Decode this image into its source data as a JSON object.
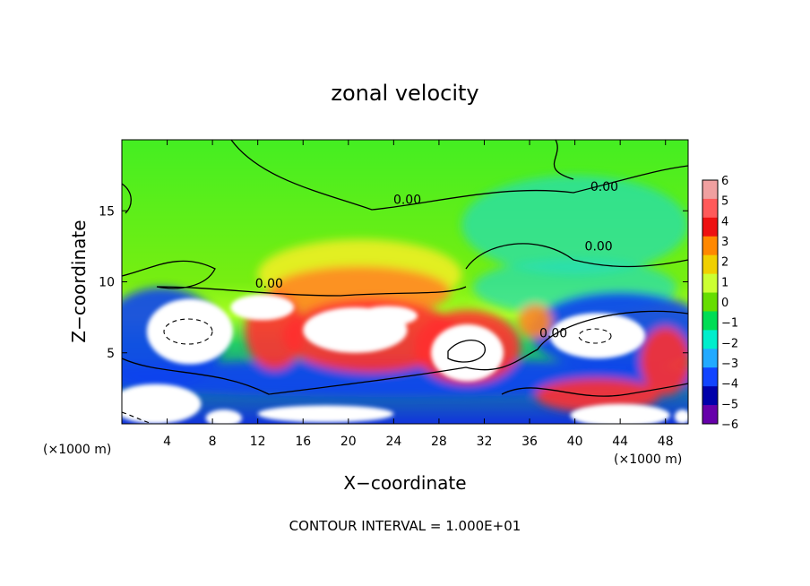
{
  "chart_data": {
    "type": "heatmap",
    "title": "zonal velocity",
    "xlabel": "X−coordinate",
    "ylabel": "Z−coordinate",
    "x_units": "(×1000 m)",
    "y_units": "(×1000 m)",
    "xlim": [
      0,
      50
    ],
    "ylim": [
      0,
      20
    ],
    "x_ticks": [
      4,
      8,
      12,
      16,
      20,
      24,
      28,
      32,
      36,
      40,
      44,
      48
    ],
    "y_ticks": [
      5,
      10,
      15
    ],
    "colorbar": {
      "ticks": [
        "6",
        "5",
        "4",
        "3",
        "2",
        "1",
        "0",
        "−1",
        "−2",
        "−3",
        "−4",
        "−5",
        "−6"
      ],
      "range": [
        -6,
        6
      ],
      "colors": [
        "#f0a0a0",
        "#ff5a5a",
        "#ee1111",
        "#ff8800",
        "#f0d000",
        "#ccff33",
        "#66dd00",
        "#00dd55",
        "#00eecc",
        "#22aaff",
        "#1144ff",
        "#0000aa",
        "#6600aa"
      ]
    },
    "contour_labels": [
      {
        "text": "0.00",
        "x": 13,
        "y": 9.6
      },
      {
        "text": "0.00",
        "x": 25.2,
        "y": 15.5
      },
      {
        "text": "0.00",
        "x": 42.6,
        "y": 16.4
      },
      {
        "text": "0.00",
        "x": 42.1,
        "y": 12.2
      },
      {
        "text": "0.00",
        "x": 38.1,
        "y": 6.1
      }
    ],
    "features": [
      {
        "kind": "white",
        "x": 6,
        "y": 6.5,
        "rx": 3.8,
        "ry": 2.3
      },
      {
        "kind": "white",
        "x": 12.4,
        "y": 8.2,
        "rx": 2.8,
        "ry": 0.9
      },
      {
        "kind": "white",
        "x": 20.6,
        "y": 6.6,
        "rx": 4.6,
        "ry": 1.6
      },
      {
        "kind": "white",
        "x": 23.5,
        "y": 7.6,
        "rx": 2.6,
        "ry": 0.7
      },
      {
        "kind": "white",
        "x": 30.5,
        "y": 5,
        "rx": 3.2,
        "ry": 2
      },
      {
        "kind": "white",
        "x": 42,
        "y": 6.2,
        "rx": 4.2,
        "ry": 1.6
      },
      {
        "kind": "white",
        "x": 3,
        "y": 1.4,
        "rx": 4,
        "ry": 1.4
      },
      {
        "kind": "white",
        "x": 9,
        "y": 0.4,
        "rx": 1.6,
        "ry": 0.6
      },
      {
        "kind": "white",
        "x": 18,
        "y": 0.7,
        "rx": 6,
        "ry": 0.6
      },
      {
        "kind": "white",
        "x": 44,
        "y": 0.6,
        "rx": 4.4,
        "ry": 0.8
      },
      {
        "kind": "white",
        "x": 49.5,
        "y": 0.5,
        "rx": 0.7,
        "ry": 0.5
      },
      {
        "kind": "blue",
        "x": 3.5,
        "y": 6,
        "rx": 5.5,
        "ry": 3.6
      },
      {
        "kind": "blue",
        "x": 44,
        "y": 6.5,
        "rx": 8,
        "ry": 2.8
      },
      {
        "kind": "blue",
        "x": 18.7,
        "y": 7,
        "rx": 1.8,
        "ry": 1.6
      },
      {
        "kind": "blue",
        "x": 24,
        "y": 3.2,
        "rx": 30,
        "ry": 1.3
      },
      {
        "kind": "red",
        "x": 13.5,
        "y": 6.5,
        "rx": 2.6,
        "ry": 2.7
      },
      {
        "kind": "red",
        "x": 22,
        "y": 6.2,
        "rx": 7.8,
        "ry": 2.6
      },
      {
        "kind": "red",
        "x": 30.5,
        "y": 5.4,
        "rx": 4.7,
        "ry": 2.6
      },
      {
        "kind": "red",
        "x": 48,
        "y": 4.4,
        "rx": 2.2,
        "ry": 2.4
      },
      {
        "kind": "red",
        "x": 42,
        "y": 2,
        "rx": 5.5,
        "ry": 1.2
      },
      {
        "kind": "orange",
        "x": 21,
        "y": 9.3,
        "rx": 8,
        "ry": 1.8
      },
      {
        "kind": "orange",
        "x": 36.5,
        "y": 7.2,
        "rx": 1.5,
        "ry": 1.2
      },
      {
        "kind": "yellow",
        "x": 21,
        "y": 10.5,
        "rx": 9,
        "ry": 2.5
      },
      {
        "kind": "cyan",
        "x": 40,
        "y": 9.6,
        "rx": 9,
        "ry": 2
      },
      {
        "kind": "cyan",
        "x": 40,
        "y": 14,
        "rx": 10,
        "ry": 3.5
      }
    ]
  },
  "footer": {
    "contour_interval": "CONTOUR INTERVAL = 1.000E+01"
  }
}
